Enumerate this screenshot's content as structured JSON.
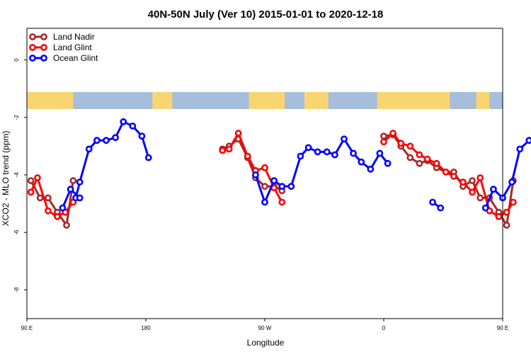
{
  "chart_data": {
    "type": "line",
    "title": "40N-50N July (Ver 10)   2015-01-01 to 2020-12-18",
    "xlabel": "Longitude",
    "ylabel": "XCO2 - MLO trend (ppm)",
    "xlim": [
      90,
      450
    ],
    "ylim": [
      -9,
      1.1
    ],
    "x_ticks": [
      {
        "value": 90,
        "label": "90 E"
      },
      {
        "value": 180,
        "label": "180"
      },
      {
        "value": 270,
        "label": "90 W"
      },
      {
        "value": 360,
        "label": "0"
      },
      {
        "value": 450,
        "label": "90 E"
      },
      {
        "value": 540,
        "label": "180"
      }
    ],
    "y_ticks": [
      {
        "value": 0,
        "label": "0"
      },
      {
        "value": -2,
        "label": "-2"
      },
      {
        "value": -4,
        "label": "-4"
      },
      {
        "value": -6,
        "label": "-6"
      },
      {
        "value": -8,
        "label": "-8"
      }
    ],
    "legend_position": "top-left",
    "map_strip": {
      "ocean_color": "#a7bddc",
      "land_color": "#f9d572"
    },
    "series": [
      {
        "name": "Land Nadir",
        "color": "#a52a2a",
        "segments": [
          [
            [
              93,
              -4.2
            ],
            [
              100,
              -4.8
            ],
            [
              106,
              -4.8
            ],
            [
              113,
              -5.3
            ],
            [
              120,
              -5.75
            ],
            [
              125,
              -4.2
            ]
          ],
          [
            [
              238,
              -3.1
            ],
            [
              243,
              -3.0
            ],
            [
              250,
              -2.75
            ],
            [
              257,
              -3.4
            ],
            [
              263,
              -4.1
            ],
            [
              270,
              -4.4
            ],
            [
              277,
              -4.4
            ],
            [
              283,
              -4.55
            ]
          ],
          [
            [
              360,
              -2.65
            ],
            [
              367,
              -2.6
            ],
            [
              373,
              -3.0
            ],
            [
              380,
              -3.4
            ],
            [
              387,
              -3.6
            ],
            [
              393,
              -3.5
            ],
            [
              400,
              -3.75
            ],
            [
              407,
              -3.9
            ],
            [
              413,
              -3.9
            ],
            [
              420,
              -4.4
            ],
            [
              427,
              -4.2
            ],
            [
              433,
              -4.8
            ],
            [
              440,
              -4.8
            ],
            [
              447,
              -5.3
            ],
            [
              453,
              -5.75
            ],
            [
              458,
              -4.2
            ]
          ]
        ]
      },
      {
        "name": "Land Glint",
        "color": "#ff0000",
        "segments": [
          [
            [
              93,
              -4.6
            ],
            [
              98,
              -4.1
            ],
            [
              106,
              -5.25
            ],
            [
              113,
              -5.45
            ],
            [
              119,
              -5.3
            ],
            [
              125,
              -4.95
            ]
          ],
          [
            [
              238,
              -3.15
            ],
            [
              243,
              -3.1
            ],
            [
              250,
              -2.55
            ],
            [
              257,
              -3.35
            ],
            [
              263,
              -3.85
            ],
            [
              270,
              -3.75
            ],
            [
              277,
              -4.45
            ],
            [
              283,
              -4.95
            ]
          ],
          [
            [
              360,
              -2.85
            ],
            [
              367,
              -2.55
            ],
            [
              373,
              -2.9
            ],
            [
              380,
              -3.0
            ],
            [
              387,
              -3.3
            ],
            [
              393,
              -3.45
            ],
            [
              400,
              -3.6
            ],
            [
              407,
              -3.9
            ],
            [
              413,
              -4.05
            ],
            [
              420,
              -4.25
            ],
            [
              427,
              -4.6
            ],
            [
              433,
              -4.1
            ],
            [
              440,
              -5.25
            ],
            [
              447,
              -5.45
            ],
            [
              453,
              -5.3
            ],
            [
              458,
              -4.95
            ]
          ]
        ]
      },
      {
        "name": "Ocean Glint",
        "color": "#0000ff",
        "segments": [
          [
            [
              127,
              -4.8
            ],
            [
              130,
              -4.25
            ],
            [
              137,
              -3.1
            ],
            [
              143,
              -2.8
            ],
            [
              150,
              -2.8
            ],
            [
              157,
              -2.7
            ],
            [
              163,
              -2.15
            ],
            [
              170,
              -2.3
            ],
            [
              177,
              -2.65
            ],
            [
              182,
              -3.4
            ]
          ],
          [
            [
              263,
              -4.0
            ],
            [
              270,
              -4.95
            ],
            [
              277,
              -4.2
            ],
            [
              283,
              -4.4
            ],
            [
              290,
              -4.4
            ],
            [
              297,
              -3.35
            ],
            [
              303,
              -3.05
            ],
            [
              310,
              -3.2
            ],
            [
              317,
              -3.2
            ],
            [
              323,
              -3.3
            ],
            [
              330,
              -2.75
            ],
            [
              337,
              -3.25
            ],
            [
              343,
              -3.55
            ],
            [
              350,
              -3.8
            ],
            [
              357,
              -3.25
            ],
            [
              363,
              -3.6
            ]
          ],
          [
            [
              397,
              -4.95
            ],
            [
              403,
              -5.15
            ]
          ],
          [
            [
              437,
              -5.15
            ],
            [
              443,
              -4.5
            ],
            [
              450,
              -4.8
            ],
            [
              457,
              -4.25
            ],
            [
              463,
              -3.1
            ],
            [
              470,
              -2.8
            ]
          ],
          [
            [
              117,
              -5.15
            ],
            [
              123,
              -4.5
            ],
            [
              130,
              -4.8
            ]
          ]
        ]
      }
    ]
  }
}
